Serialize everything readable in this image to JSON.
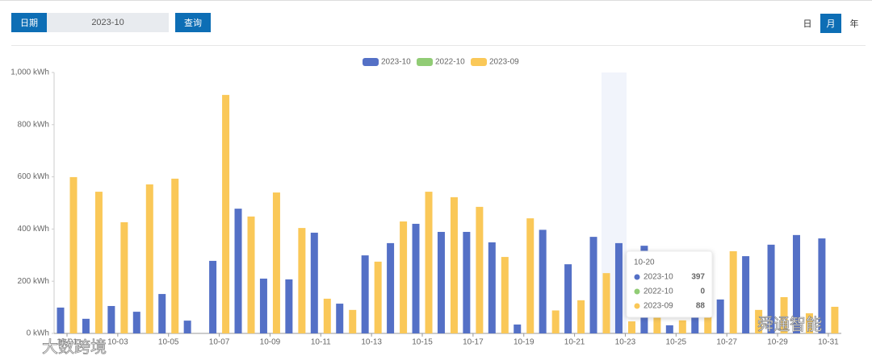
{
  "controls": {
    "date_label": "日期",
    "date_value": "2023-10",
    "query": "查询",
    "periods": [
      "日",
      "月",
      "年"
    ],
    "active_period": 1
  },
  "watermarks": [
    "大数跨境",
    "舜通智能"
  ],
  "chart_data": {
    "type": "bar",
    "categories": [
      "10-01",
      null,
      "10-03",
      null,
      "10-05",
      null,
      "10-07",
      null,
      "10-09",
      null,
      "10-11",
      null,
      "10-13",
      null,
      "10-15",
      null,
      "10-17",
      null,
      "10-19",
      "10-20",
      "10-21",
      null,
      "10-23",
      null,
      "10-25",
      null,
      "10-27",
      null,
      "10-29",
      null,
      "10-31"
    ],
    "series": [
      {
        "name": "2023-10",
        "color": "#5470c6",
        "values": [
          99,
          56,
          105,
          83,
          151,
          49,
          278,
          478,
          210,
          207,
          386,
          114,
          299,
          346,
          420,
          389,
          389,
          349,
          34,
          397,
          265,
          370,
          346,
          336,
          31,
          120,
          130,
          296,
          340,
          377,
          364
        ]
      },
      {
        "name": "2022-10",
        "color": "#91cc75",
        "values": [
          0,
          0,
          0,
          0,
          0,
          0,
          0,
          0,
          0,
          0,
          0,
          0,
          0,
          0,
          0,
          0,
          0,
          0,
          0,
          0,
          0,
          0,
          0,
          0,
          0,
          0,
          0,
          0,
          0,
          0,
          0
        ]
      },
      {
        "name": "2023-09",
        "color": "#fac858",
        "values": [
          599,
          543,
          426,
          571,
          593,
          0,
          914,
          448,
          540,
          404,
          133,
          90,
          275,
          429,
          543,
          522,
          485,
          293,
          441,
          88,
          127,
          231,
          46,
          60,
          50,
          70,
          315,
          90,
          139,
          77,
          102
        ]
      }
    ],
    "ylim": [
      0,
      1000
    ],
    "yticks": [
      {
        "value": 0,
        "label": "0 kWh"
      },
      {
        "value": 200,
        "label": "200 kWh"
      },
      {
        "value": 400,
        "label": "400 kWh"
      },
      {
        "value": 600,
        "label": "600 kWh"
      },
      {
        "value": 800,
        "label": "800 kWh"
      },
      {
        "value": 1000,
        "label": "1,000 kWh"
      }
    ],
    "grid": false,
    "legend": "top",
    "tooltip": {
      "index": 19
    }
  }
}
